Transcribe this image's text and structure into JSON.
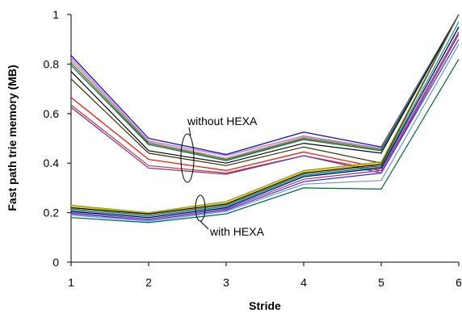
{
  "chart_data": {
    "type": "line",
    "xlabel": "Stride",
    "ylabel": "Fast path trie memory (MB)",
    "x": [
      1,
      2,
      3,
      4,
      5,
      6
    ],
    "xlim": [
      1,
      6
    ],
    "ylim": [
      0,
      1
    ],
    "yticks": [
      "0",
      "0.2",
      "0.4",
      "0.6",
      "0.8",
      "1"
    ],
    "grid": false,
    "legend": "none",
    "annotations": [
      {
        "name": "without-hexa-label",
        "text": "without HEXA"
      },
      {
        "name": "with-hexa-label",
        "text": "with HEXA"
      }
    ],
    "series": [
      {
        "group": "without",
        "color": "#0000cc",
        "values": [
          0.835,
          0.5,
          0.435,
          0.525,
          0.465,
          1.0
        ]
      },
      {
        "group": "without",
        "color": "#cc66cc",
        "values": [
          0.825,
          0.49,
          0.43,
          0.51,
          0.46,
          1.0
        ]
      },
      {
        "group": "without",
        "color": "#999999",
        "values": [
          0.815,
          0.485,
          0.42,
          0.505,
          0.46,
          1.0
        ]
      },
      {
        "group": "without",
        "color": "#666600",
        "values": [
          0.805,
          0.48,
          0.415,
          0.5,
          0.455,
          1.0
        ]
      },
      {
        "group": "without",
        "color": "#006666",
        "values": [
          0.795,
          0.475,
          0.41,
          0.495,
          0.45,
          1.0
        ]
      },
      {
        "group": "without",
        "color": "#000000",
        "values": [
          0.77,
          0.45,
          0.4,
          0.48,
          0.44,
          1.0
        ]
      },
      {
        "group": "without",
        "color": "#333300",
        "values": [
          0.74,
          0.44,
          0.39,
          0.465,
          0.4,
          1.0
        ]
      },
      {
        "group": "without",
        "color": "#ff0000",
        "values": [
          0.665,
          0.415,
          0.37,
          0.445,
          0.38,
          0.95
        ]
      },
      {
        "group": "without",
        "color": "#cc3333",
        "values": [
          0.635,
          0.39,
          0.36,
          0.43,
          0.37,
          0.93
        ]
      },
      {
        "group": "without",
        "color": "#663399",
        "values": [
          0.625,
          0.38,
          0.355,
          0.43,
          0.36,
          0.92
        ]
      },
      {
        "group": "with",
        "color": "#999900",
        "values": [
          0.23,
          0.2,
          0.245,
          0.37,
          0.405,
          1.0
        ]
      },
      {
        "group": "with",
        "color": "#cccc00",
        "values": [
          0.225,
          0.198,
          0.24,
          0.365,
          0.4,
          1.0
        ]
      },
      {
        "group": "with",
        "color": "#000000",
        "values": [
          0.22,
          0.195,
          0.235,
          0.36,
          0.395,
          1.0
        ]
      },
      {
        "group": "with",
        "color": "#666666",
        "values": [
          0.215,
          0.19,
          0.23,
          0.355,
          0.39,
          1.0
        ]
      },
      {
        "group": "with",
        "color": "#009999",
        "values": [
          0.21,
          0.185,
          0.225,
          0.35,
          0.385,
          0.97
        ]
      },
      {
        "group": "with",
        "color": "#000066",
        "values": [
          0.205,
          0.18,
          0.22,
          0.345,
          0.38,
          0.95
        ]
      },
      {
        "group": "with",
        "color": "#993399",
        "values": [
          0.2,
          0.175,
          0.215,
          0.335,
          0.37,
          0.93
        ]
      },
      {
        "group": "with",
        "color": "#3333cc",
        "values": [
          0.195,
          0.17,
          0.21,
          0.325,
          0.36,
          0.9
        ]
      },
      {
        "group": "with",
        "color": "#6699cc",
        "values": [
          0.19,
          0.165,
          0.205,
          0.315,
          0.33,
          0.88
        ]
      },
      {
        "group": "with",
        "color": "#006633",
        "values": [
          0.18,
          0.16,
          0.195,
          0.3,
          0.295,
          0.82
        ]
      }
    ]
  }
}
